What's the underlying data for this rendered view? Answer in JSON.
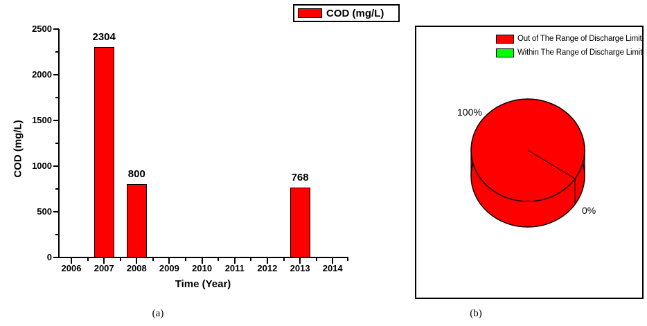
{
  "figure": {
    "captions": {
      "a": "(a)",
      "b": "(b)"
    }
  },
  "colors": {
    "red": "#FF0000",
    "green": "#00FF00",
    "axis_black": "#000000"
  },
  "chart_data": [
    {
      "type": "bar",
      "panel": "a",
      "title": "",
      "xlabel": "Time (Year)",
      "ylabel": "COD (mg/L)",
      "categories": [
        "2006",
        "2007",
        "2008",
        "2009",
        "2010",
        "2011",
        "2012",
        "2013",
        "2014"
      ],
      "values": [
        0,
        2304,
        800,
        0,
        0,
        0,
        0,
        768,
        0
      ],
      "bar_value_labels": [
        "",
        "2304",
        "800",
        "",
        "",
        "",
        "",
        "768",
        ""
      ],
      "bar_color": "#FF0000",
      "ylim": [
        0,
        2500
      ],
      "yticks": [
        0,
        500,
        1000,
        1500,
        2000,
        2500
      ],
      "ytick_minor_step": 250,
      "grid": false,
      "legend": {
        "label": "COD (mg/L)",
        "swatch_color": "#FF0000",
        "position": "top-center",
        "boxed": true
      }
    },
    {
      "type": "pie",
      "panel": "b",
      "style": "3d",
      "legend_position": "top-right",
      "slices": [
        {
          "label": "Out of The Range of Discharge Limit",
          "value_pct": 100,
          "color": "#FF0000",
          "pct_label": "100%"
        },
        {
          "label": "Within The Range of Discharge Limit",
          "value_pct": 0,
          "color": "#00FF00",
          "pct_label": "0%"
        }
      ]
    }
  ]
}
